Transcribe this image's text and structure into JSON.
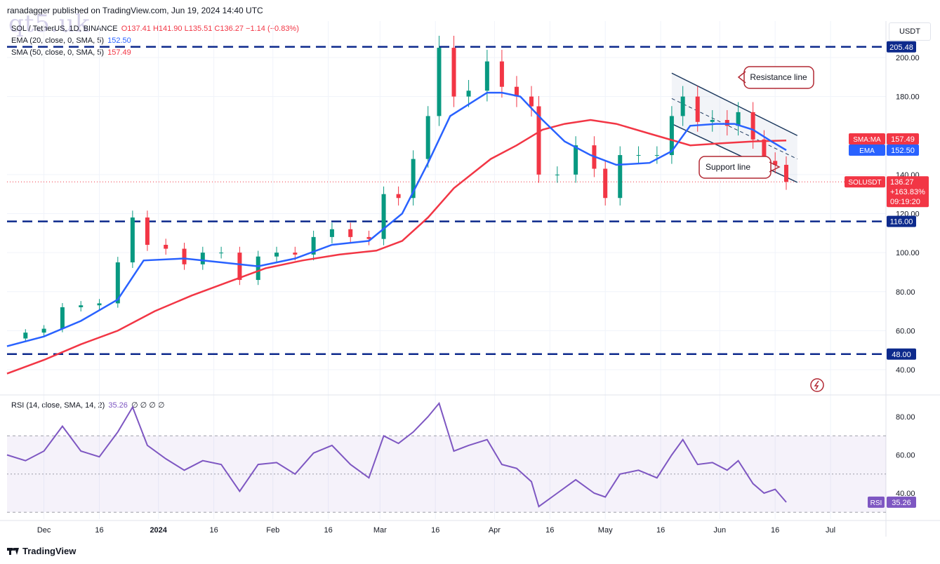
{
  "header": {
    "publisher": "ranadagger published on TradingView.com, Jun 19, 2024 14:40 UTC",
    "watermark": "qt5.uk",
    "currency_button": "USDT",
    "footer_brand": "TradingView"
  },
  "legend": {
    "symbol": "SOL / TetherUS, 1D, BINANCE",
    "ohlc": "O137.41 H141.90 L135.51 C136.27 −1.14 (−0.83%)",
    "ema_label": "EMA (20, close, 0, SMA, 5)",
    "ema_value": "152.50",
    "sma_label": "SMA (50, close, 0, SMA, 5)",
    "sma_value": "157.49",
    "rsi_label": "RSI (14, close, SMA, 14, 2)",
    "rsi_value": "35.26",
    "rsi_extra": "∅ ∅ ∅ ∅"
  },
  "annotations": {
    "resistance": "Resistance line",
    "support": "Support line"
  },
  "price_tags": {
    "r205": "205.48",
    "r116": "116.00",
    "r48": "48.00",
    "sma_name": "SMA:MA",
    "sma_val": "157.49",
    "ema_name": "EMA",
    "ema_val": "152.50",
    "sym_name": "SOLUSDT",
    "last_price": "136.27",
    "last_change": "+163.83%",
    "countdown": "09:19:20",
    "rsi_name": "RSI",
    "rsi_val": "35.26"
  },
  "colors": {
    "up": "#089981",
    "down": "#f23645",
    "ema": "#2962ff",
    "sma": "#f23645",
    "rsi": "#7e57c2",
    "level": "#0d2a8c",
    "channel": "#1e3a5f"
  },
  "chart_data": {
    "type": "line",
    "title": "SOL / TetherUS, 1D, BINANCE",
    "price_axis_ticks": [
      40,
      60,
      80,
      100,
      120,
      140,
      180,
      200
    ],
    "rsi_axis_ticks": [
      40,
      60,
      80
    ],
    "time_axis_labels": [
      "Dec",
      "16",
      "2024",
      "16",
      "Feb",
      "16",
      "Mar",
      "16",
      "Apr",
      "16",
      "May",
      "16",
      "Jun",
      "16",
      "Jul"
    ],
    "horizontal_levels": [
      205.48,
      116.0,
      48.0
    ],
    "close_series": [
      [
        "2023-11-21",
        56
      ],
      [
        "2023-11-26",
        59
      ],
      [
        "2023-12-01",
        61
      ],
      [
        "2023-12-06",
        72
      ],
      [
        "2023-12-11",
        73
      ],
      [
        "2023-12-16",
        74
      ],
      [
        "2023-12-21",
        95
      ],
      [
        "2023-12-25",
        118
      ],
      [
        "2023-12-29",
        104
      ],
      [
        "2024-01-03",
        102
      ],
      [
        "2024-01-08",
        94
      ],
      [
        "2024-01-13",
        100
      ],
      [
        "2024-01-18",
        100
      ],
      [
        "2024-01-23",
        86
      ],
      [
        "2024-01-28",
        98
      ],
      [
        "2024-02-02",
        100
      ],
      [
        "2024-02-07",
        99
      ],
      [
        "2024-02-12",
        108
      ],
      [
        "2024-02-17",
        112
      ],
      [
        "2024-02-22",
        108
      ],
      [
        "2024-02-27",
        107
      ],
      [
        "2024-03-02",
        130
      ],
      [
        "2024-03-06",
        128
      ],
      [
        "2024-03-10",
        148
      ],
      [
        "2024-03-14",
        170
      ],
      [
        "2024-03-17",
        205
      ],
      [
        "2024-03-21",
        180
      ],
      [
        "2024-03-25",
        183
      ],
      [
        "2024-03-30",
        198
      ],
      [
        "2024-04-03",
        185
      ],
      [
        "2024-04-07",
        180
      ],
      [
        "2024-04-11",
        175
      ],
      [
        "2024-04-13",
        140
      ],
      [
        "2024-04-18",
        140
      ],
      [
        "2024-04-23",
        155
      ],
      [
        "2024-04-28",
        143
      ],
      [
        "2024-05-01",
        128
      ],
      [
        "2024-05-05",
        150
      ],
      [
        "2024-05-10",
        150
      ],
      [
        "2024-05-15",
        150
      ],
      [
        "2024-05-19",
        170
      ],
      [
        "2024-05-22",
        180
      ],
      [
        "2024-05-26",
        167
      ],
      [
        "2024-05-30",
        168
      ],
      [
        "2024-06-03",
        165
      ],
      [
        "2024-06-06",
        172
      ],
      [
        "2024-06-10",
        158
      ],
      [
        "2024-06-13",
        147
      ],
      [
        "2024-06-16",
        145
      ],
      [
        "2024-06-19",
        136.27
      ]
    ],
    "ema20_series": [
      [
        "2023-11-21",
        52
      ],
      [
        "2023-12-01",
        57
      ],
      [
        "2023-12-11",
        65
      ],
      [
        "2023-12-21",
        76
      ],
      [
        "2023-12-28",
        96
      ],
      [
        "2024-01-08",
        97
      ],
      [
        "2024-01-18",
        95
      ],
      [
        "2024-01-28",
        93
      ],
      [
        "2024-02-07",
        97
      ],
      [
        "2024-02-17",
        104
      ],
      [
        "2024-02-27",
        106
      ],
      [
        "2024-03-07",
        120
      ],
      [
        "2024-03-14",
        146
      ],
      [
        "2024-03-20",
        170
      ],
      [
        "2024-03-30",
        182
      ],
      [
        "2024-04-03",
        182
      ],
      [
        "2024-04-08",
        180
      ],
      [
        "2024-04-14",
        168
      ],
      [
        "2024-04-20",
        157
      ],
      [
        "2024-04-27",
        150
      ],
      [
        "2024-05-04",
        145
      ],
      [
        "2024-05-13",
        146
      ],
      [
        "2024-05-19",
        152
      ],
      [
        "2024-05-24",
        165
      ],
      [
        "2024-05-31",
        166
      ],
      [
        "2024-06-05",
        166
      ],
      [
        "2024-06-10",
        163
      ],
      [
        "2024-06-15",
        157
      ],
      [
        "2024-06-19",
        152.5
      ]
    ],
    "sma50_series": [
      [
        "2023-11-21",
        38
      ],
      [
        "2023-12-01",
        45
      ],
      [
        "2023-12-11",
        53
      ],
      [
        "2023-12-21",
        60
      ],
      [
        "2023-12-31",
        70
      ],
      [
        "2024-01-10",
        78
      ],
      [
        "2024-01-20",
        85
      ],
      [
        "2024-01-30",
        92
      ],
      [
        "2024-02-09",
        96
      ],
      [
        "2024-02-19",
        99
      ],
      [
        "2024-02-29",
        101
      ],
      [
        "2024-03-07",
        106
      ],
      [
        "2024-03-14",
        118
      ],
      [
        "2024-03-21",
        133
      ],
      [
        "2024-03-31",
        148
      ],
      [
        "2024-04-07",
        155
      ],
      [
        "2024-04-14",
        163
      ],
      [
        "2024-04-20",
        166
      ],
      [
        "2024-04-27",
        168
      ],
      [
        "2024-05-04",
        166
      ],
      [
        "2024-05-13",
        161
      ],
      [
        "2024-05-24",
        155
      ],
      [
        "2024-06-01",
        156
      ],
      [
        "2024-06-10",
        157
      ],
      [
        "2024-06-19",
        157.49
      ]
    ],
    "rsi_series": [
      [
        "2023-11-21",
        60
      ],
      [
        "2023-11-26",
        57
      ],
      [
        "2023-12-01",
        62
      ],
      [
        "2023-12-06",
        75
      ],
      [
        "2023-12-11",
        62
      ],
      [
        "2023-12-16",
        59
      ],
      [
        "2023-12-21",
        72
      ],
      [
        "2023-12-25",
        85
      ],
      [
        "2023-12-29",
        65
      ],
      [
        "2024-01-03",
        58
      ],
      [
        "2024-01-08",
        52
      ],
      [
        "2024-01-13",
        57
      ],
      [
        "2024-01-18",
        55
      ],
      [
        "2024-01-23",
        41
      ],
      [
        "2024-01-28",
        55
      ],
      [
        "2024-02-02",
        56
      ],
      [
        "2024-02-07",
        50
      ],
      [
        "2024-02-12",
        61
      ],
      [
        "2024-02-17",
        65
      ],
      [
        "2024-02-22",
        55
      ],
      [
        "2024-02-27",
        48
      ],
      [
        "2024-03-02",
        70
      ],
      [
        "2024-03-06",
        66
      ],
      [
        "2024-03-10",
        72
      ],
      [
        "2024-03-14",
        80
      ],
      [
        "2024-03-17",
        87
      ],
      [
        "2024-03-21",
        62
      ],
      [
        "2024-03-25",
        65
      ],
      [
        "2024-03-30",
        68
      ],
      [
        "2024-04-03",
        55
      ],
      [
        "2024-04-07",
        53
      ],
      [
        "2024-04-11",
        46
      ],
      [
        "2024-04-13",
        33
      ],
      [
        "2024-04-18",
        40
      ],
      [
        "2024-04-23",
        47
      ],
      [
        "2024-04-28",
        40
      ],
      [
        "2024-05-01",
        38
      ],
      [
        "2024-05-05",
        50
      ],
      [
        "2024-05-10",
        52
      ],
      [
        "2024-05-15",
        48
      ],
      [
        "2024-05-19",
        60
      ],
      [
        "2024-05-22",
        68
      ],
      [
        "2024-05-26",
        55
      ],
      [
        "2024-05-30",
        56
      ],
      [
        "2024-06-03",
        52
      ],
      [
        "2024-06-06",
        57
      ],
      [
        "2024-06-10",
        45
      ],
      [
        "2024-06-13",
        40
      ],
      [
        "2024-06-16",
        42
      ],
      [
        "2024-06-19",
        35.26
      ]
    ],
    "channel": {
      "resistance": [
        [
          "2024-05-19",
          192
        ],
        [
          "2024-06-22",
          160
        ]
      ],
      "support": [
        [
          "2024-05-19",
          166
        ],
        [
          "2024-06-22",
          136
        ]
      ]
    },
    "ylim": [
      30,
      215
    ],
    "rsi_ylim": [
      28,
      92
    ],
    "xlim": [
      "2023-11-21",
      "2024-07-16"
    ]
  }
}
